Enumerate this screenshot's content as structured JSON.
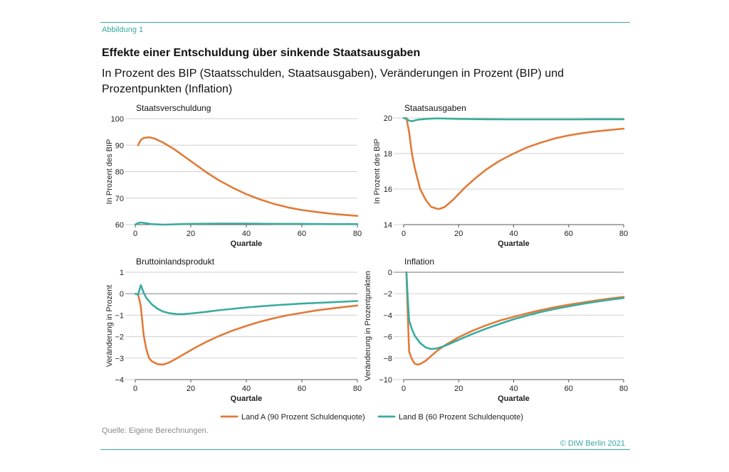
{
  "figure": {
    "label": "Abbildung 1",
    "title": "Effekte einer Entschuldung über sinkende Staatsausgaben",
    "subtitle": "In Prozent des BIP (Staatsschulden, Staatsausgaben), Veränderungen in Prozent (BIP) und Prozentpunkten (Inflation)",
    "source": "Quelle: Eigene Berechnungen.",
    "copyright": "© DIW Berlin 2021"
  },
  "colors": {
    "land_a": "#e07b39",
    "land_b": "#3aab9f",
    "grid": "#cfcfcf",
    "axis": "#555555"
  },
  "legend": [
    {
      "label": "Land A (90 Prozent Schuldenquote)",
      "color": "#e07b39"
    },
    {
      "label": "Land B (60 Prozent Schuldenquote)",
      "color": "#3aab9f"
    }
  ],
  "chart_data": [
    {
      "type": "line",
      "title": "Staatsverschuldung",
      "xlabel": "Quartale",
      "ylabel": "In Prozent des BIP",
      "xlim": [
        0,
        80
      ],
      "ylim": [
        60,
        100
      ],
      "xticks": [
        0,
        20,
        40,
        60,
        80
      ],
      "yticks": [
        60,
        70,
        80,
        90,
        100
      ],
      "grid": true,
      "series": [
        {
          "name": "Land A (90 Prozent Schuldenquote)",
          "x": [
            1,
            2,
            3,
            5,
            7,
            10,
            14,
            18,
            22,
            26,
            30,
            35,
            40,
            45,
            50,
            55,
            60,
            65,
            70,
            75,
            80
          ],
          "y": [
            90,
            92,
            92.7,
            93,
            92.5,
            91,
            88.5,
            85.5,
            82.5,
            79.5,
            76.8,
            74,
            71.5,
            69.5,
            67.8,
            66.5,
            65.5,
            64.8,
            64.2,
            63.7,
            63.3
          ]
        },
        {
          "name": "Land B (60 Prozent Schuldenquote)",
          "x": [
            0,
            1,
            2,
            4,
            6,
            10,
            20,
            30,
            40,
            50,
            60,
            70,
            80
          ],
          "y": [
            60,
            60.6,
            60.8,
            60.5,
            60.2,
            60,
            60.3,
            60.4,
            60.4,
            60.3,
            60.3,
            60.2,
            60.2
          ]
        }
      ]
    },
    {
      "type": "line",
      "title": "Staatsausgaben",
      "xlabel": "Quartale",
      "ylabel": "In Prozent des BIP",
      "xlim": [
        0,
        80
      ],
      "ylim": [
        14,
        20
      ],
      "xticks": [
        0,
        20,
        40,
        60,
        80
      ],
      "yticks": [
        14,
        16,
        18,
        20
      ],
      "grid": true,
      "series": [
        {
          "name": "Land A (90 Prozent Schuldenquote)",
          "x": [
            1,
            2,
            3,
            4,
            5,
            6,
            8,
            10,
            12,
            13,
            15,
            18,
            22,
            26,
            30,
            35,
            40,
            45,
            50,
            55,
            60,
            65,
            70,
            75,
            80
          ],
          "y": [
            20,
            19.2,
            18,
            17.2,
            16.6,
            16,
            15.4,
            15,
            14.9,
            14.88,
            15,
            15.4,
            16.05,
            16.6,
            17.1,
            17.6,
            18,
            18.35,
            18.62,
            18.85,
            19.02,
            19.15,
            19.25,
            19.33,
            19.4
          ]
        },
        {
          "name": "Land B (60 Prozent Schuldenquote)",
          "x": [
            0,
            1,
            2,
            3,
            5,
            8,
            12,
            20,
            30,
            40,
            50,
            60,
            70,
            80
          ],
          "y": [
            20,
            19.95,
            19.85,
            19.82,
            19.9,
            19.95,
            19.98,
            19.95,
            19.93,
            19.92,
            19.92,
            19.92,
            19.93,
            19.93
          ]
        }
      ]
    },
    {
      "type": "line",
      "title": "Bruttoinlandsprodukt",
      "xlabel": "Quartale",
      "ylabel": "Veränderung in Prozent",
      "xlim": [
        0,
        80
      ],
      "ylim": [
        -4,
        1
      ],
      "xticks": [
        0,
        20,
        40,
        60,
        80
      ],
      "yticks": [
        -4,
        -3,
        -2,
        -1,
        0,
        1
      ],
      "grid": true,
      "series": [
        {
          "name": "Land A (90 Prozent Schuldenquote)",
          "x": [
            1,
            2,
            3,
            4,
            5,
            6,
            8,
            10,
            12,
            14,
            16,
            18,
            22,
            26,
            30,
            35,
            40,
            45,
            50,
            55,
            60,
            65,
            70,
            75,
            80
          ],
          "y": [
            0,
            -0.6,
            -1.9,
            -2.6,
            -3,
            -3.15,
            -3.28,
            -3.3,
            -3.22,
            -3.08,
            -2.93,
            -2.78,
            -2.48,
            -2.22,
            -1.98,
            -1.72,
            -1.5,
            -1.3,
            -1.14,
            -1,
            -0.89,
            -0.78,
            -0.7,
            -0.62,
            -0.55
          ]
        },
        {
          "name": "Land B (60 Prozent Schuldenquote)",
          "x": [
            0,
            1,
            2,
            3,
            4,
            6,
            8,
            10,
            12,
            15,
            17,
            20,
            25,
            30,
            40,
            50,
            60,
            70,
            80
          ],
          "y": [
            0,
            -0.05,
            0.4,
            0.05,
            -0.2,
            -0.5,
            -0.7,
            -0.83,
            -0.9,
            -0.95,
            -0.95,
            -0.92,
            -0.85,
            -0.77,
            -0.64,
            -0.54,
            -0.46,
            -0.4,
            -0.34
          ]
        }
      ]
    },
    {
      "type": "line",
      "title": "Inflation",
      "xlabel": "Quartale",
      "ylabel": "Veränderung in Prozentpunkten",
      "xlim": [
        0,
        80
      ],
      "ylim": [
        -10,
        0
      ],
      "xticks": [
        0,
        20,
        40,
        60,
        80
      ],
      "yticks": [
        -10,
        -8,
        -6,
        -4,
        -2,
        0
      ],
      "grid": true,
      "series": [
        {
          "name": "Land A (90 Prozent Schuldenquote)",
          "x": [
            1,
            1.5,
            2,
            3,
            4,
            5,
            6,
            8,
            10,
            12,
            15,
            20,
            25,
            30,
            35,
            40,
            45,
            50,
            55,
            60,
            65,
            70,
            75,
            80
          ],
          "y": [
            0,
            -4,
            -7.4,
            -8.1,
            -8.5,
            -8.6,
            -8.55,
            -8.25,
            -7.8,
            -7.35,
            -6.8,
            -6.05,
            -5.45,
            -4.95,
            -4.5,
            -4.15,
            -3.82,
            -3.52,
            -3.25,
            -3.02,
            -2.82,
            -2.62,
            -2.45,
            -2.3
          ]
        },
        {
          "name": "Land B (60 Prozent Schuldenquote)",
          "x": [
            1,
            1.5,
            2,
            3,
            4,
            6,
            8,
            10,
            12,
            14,
            16,
            20,
            25,
            30,
            35,
            40,
            45,
            50,
            55,
            60,
            65,
            70,
            75,
            80
          ],
          "y": [
            0,
            -2.5,
            -4.5,
            -5.3,
            -5.9,
            -6.6,
            -7,
            -7.15,
            -7.1,
            -6.95,
            -6.75,
            -6.3,
            -5.75,
            -5.25,
            -4.8,
            -4.38,
            -4.02,
            -3.7,
            -3.42,
            -3.18,
            -2.95,
            -2.75,
            -2.56,
            -2.4
          ]
        }
      ]
    }
  ]
}
